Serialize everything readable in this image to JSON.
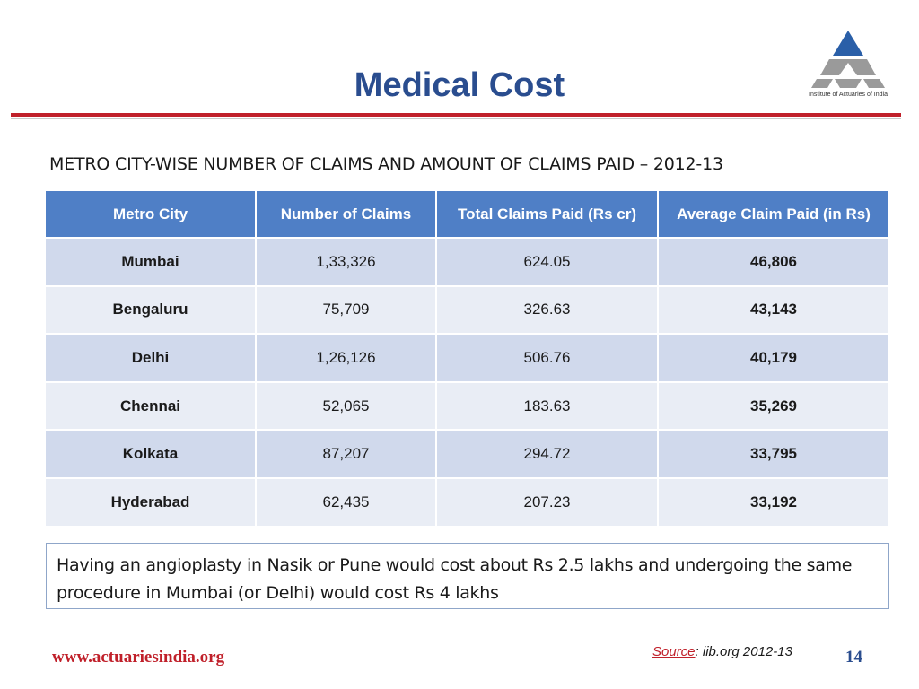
{
  "header": {
    "title": "Medical Cost",
    "logo_caption": "Institute of Actuaries of India"
  },
  "subtitle": "METRO CITY-WISE NUMBER OF CLAIMS AND AMOUNT OF CLAIMS PAID – 2012-13",
  "table": {
    "columns": [
      "Metro City",
      "Number of Claims",
      "Total Claims Paid (Rs cr)",
      "Average Claim Paid (in Rs)"
    ],
    "rows": [
      [
        "Mumbai",
        "1,33,326",
        "624.05",
        "46,806"
      ],
      [
        "Bengaluru",
        "75,709",
        "326.63",
        "43,143"
      ],
      [
        "Delhi",
        "1,26,126",
        "506.76",
        "40,179"
      ],
      [
        "Chennai",
        "52,065",
        "183.63",
        "35,269"
      ],
      [
        "Kolkata",
        "87,207",
        "294.72",
        "33,795"
      ],
      [
        "Hyderabad",
        "62,435",
        "207.23",
        "33,192"
      ]
    ]
  },
  "note": "Having an angioplasty in Nasik or Pune would cost about Rs 2.5 lakhs and undergoing the same procedure in Mumbai (or Delhi) would cost Rs 4 lakhs",
  "footer": {
    "website": "www.actuariesindia.org",
    "source_label": "Source",
    "source_text": ": iib.org 2012-13",
    "page_number": "14"
  },
  "colors": {
    "title": "#2a4d8f",
    "rule": "#c0202a",
    "table_header": "#4f7fc6",
    "row_odd": "#d0d9ec",
    "row_even": "#e9edf5",
    "logo_blue": "#2a5fa8",
    "logo_grey": "#9a9a9a"
  },
  "icons": {
    "logo": "institute-triangle-logo"
  }
}
